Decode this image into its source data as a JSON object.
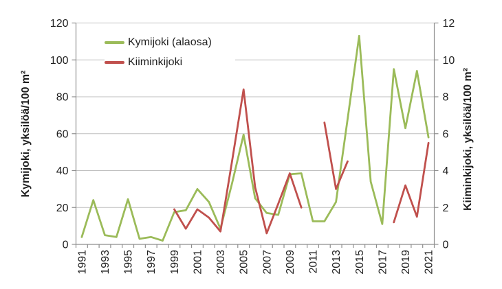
{
  "chart_data": {
    "type": "line",
    "title": "",
    "x": [
      1991,
      1992,
      1993,
      1994,
      1995,
      1996,
      1997,
      1998,
      1999,
      2000,
      2001,
      2002,
      2003,
      2004,
      2005,
      2006,
      2007,
      2008,
      2009,
      2010,
      2011,
      2012,
      2013,
      2014,
      2015,
      2016,
      2017,
      2018,
      2019,
      2020,
      2021
    ],
    "x_tick_labels": [
      "1991",
      "1993",
      "1995",
      "1997",
      "1999",
      "2001",
      "2003",
      "2005",
      "2007",
      "2009",
      "2011",
      "2013",
      "2015",
      "2017",
      "2019",
      "2021"
    ],
    "series": [
      {
        "name": "Kymijoki (alaosa)",
        "color": "#9BBB59",
        "axis": "left",
        "values": [
          4,
          24,
          5,
          4,
          24.5,
          3,
          4,
          2,
          17.5,
          18.5,
          30,
          23,
          8.5,
          33,
          59.5,
          25,
          17,
          16,
          38,
          38.5,
          12.5,
          12.5,
          23,
          68,
          113,
          34,
          11,
          95,
          63,
          94,
          58
        ]
      },
      {
        "name": "Kiiminkijoki",
        "color": "#C0504D",
        "axis": "right",
        "values": [
          null,
          null,
          null,
          null,
          null,
          null,
          null,
          null,
          1.9,
          0.85,
          1.9,
          1.45,
          0.7,
          4.5,
          8.4,
          3.1,
          0.6,
          2.2,
          3.85,
          2.0,
          null,
          6.6,
          3.0,
          4.5,
          null,
          null,
          null,
          1.2,
          3.2,
          1.5,
          5.5
        ]
      }
    ],
    "left_axis": {
      "title": "Kymijoki, yksilöä/100 m²",
      "min": 0,
      "max": 120,
      "step": 20,
      "tick_labels": [
        "0",
        "20",
        "40",
        "60",
        "80",
        "100",
        "120"
      ]
    },
    "right_axis": {
      "title": "Kiiminkijoki, yksilöä/100 m²",
      "min": 0,
      "max": 12,
      "step": 2,
      "tick_labels": [
        "0",
        "2",
        "4",
        "6",
        "8",
        "10",
        "12"
      ]
    },
    "legend": {
      "position": "inside-top-left",
      "items": [
        "Kymijoki (alaosa)",
        "Kiiminkijoki"
      ]
    },
    "grid": true,
    "colors": {
      "background": "#FFFFFF",
      "gridline": "#BFBFBF",
      "axis_line": "#8E8E8E",
      "text": "#1F1F1F"
    }
  }
}
